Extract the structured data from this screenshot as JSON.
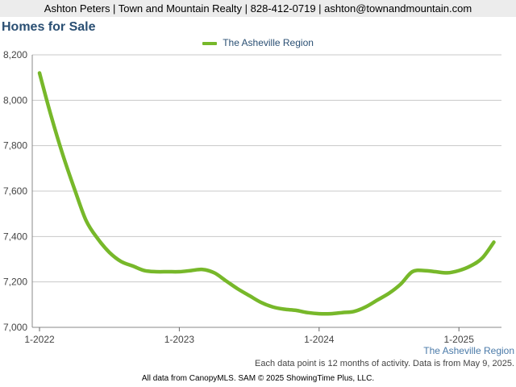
{
  "header": {
    "contact": "Ashton Peters | Town and Mountain Realty | 828-412-0719 | ashton@townandmountain.com"
  },
  "chart_title": "Homes for Sale",
  "region_label": "The Asheville Region",
  "note": "Each data point is 12 months of activity. Data is from May 9, 2025.",
  "footer": "All data from CanopyMLS. SAM © 2025 ShowingTime Plus, LLC.",
  "chart_data": {
    "type": "line",
    "title": "Homes for Sale",
    "xlabel": "",
    "ylabel": "",
    "ylim": [
      7000,
      8200
    ],
    "yticks": [
      7000,
      7200,
      7400,
      7600,
      7800,
      8000,
      8200
    ],
    "ytick_labels": [
      "7,000",
      "7,200",
      "7,400",
      "7,600",
      "7,800",
      "8,000",
      "8,200"
    ],
    "xticks": [
      {
        "label": "1-2022",
        "index": 0
      },
      {
        "label": "1-2023",
        "index": 12
      },
      {
        "label": "1-2024",
        "index": 24
      },
      {
        "label": "1-2025",
        "index": 36
      }
    ],
    "grid": true,
    "legend": "top-center",
    "color": "#77b82a",
    "series": [
      {
        "name": "The Asheville Region",
        "x": [
          "1-2022",
          "2-2022",
          "3-2022",
          "4-2022",
          "5-2022",
          "6-2022",
          "7-2022",
          "8-2022",
          "9-2022",
          "10-2022",
          "11-2022",
          "12-2022",
          "1-2023",
          "2-2023",
          "3-2023",
          "4-2023",
          "5-2023",
          "6-2023",
          "7-2023",
          "8-2023",
          "9-2023",
          "10-2023",
          "11-2023",
          "12-2023",
          "1-2024",
          "2-2024",
          "3-2024",
          "4-2024",
          "5-2024",
          "6-2024",
          "7-2024",
          "8-2024",
          "9-2024",
          "10-2024",
          "11-2024",
          "12-2024",
          "1-2025",
          "2-2025",
          "3-2025",
          "4-2025"
        ],
        "values": [
          8120,
          7930,
          7760,
          7610,
          7470,
          7390,
          7330,
          7290,
          7270,
          7250,
          7245,
          7245,
          7245,
          7250,
          7255,
          7240,
          7205,
          7170,
          7140,
          7110,
          7090,
          7080,
          7075,
          7065,
          7060,
          7060,
          7065,
          7070,
          7090,
          7120,
          7150,
          7190,
          7245,
          7250,
          7245,
          7240,
          7250,
          7270,
          7305,
          7375
        ]
      }
    ]
  }
}
